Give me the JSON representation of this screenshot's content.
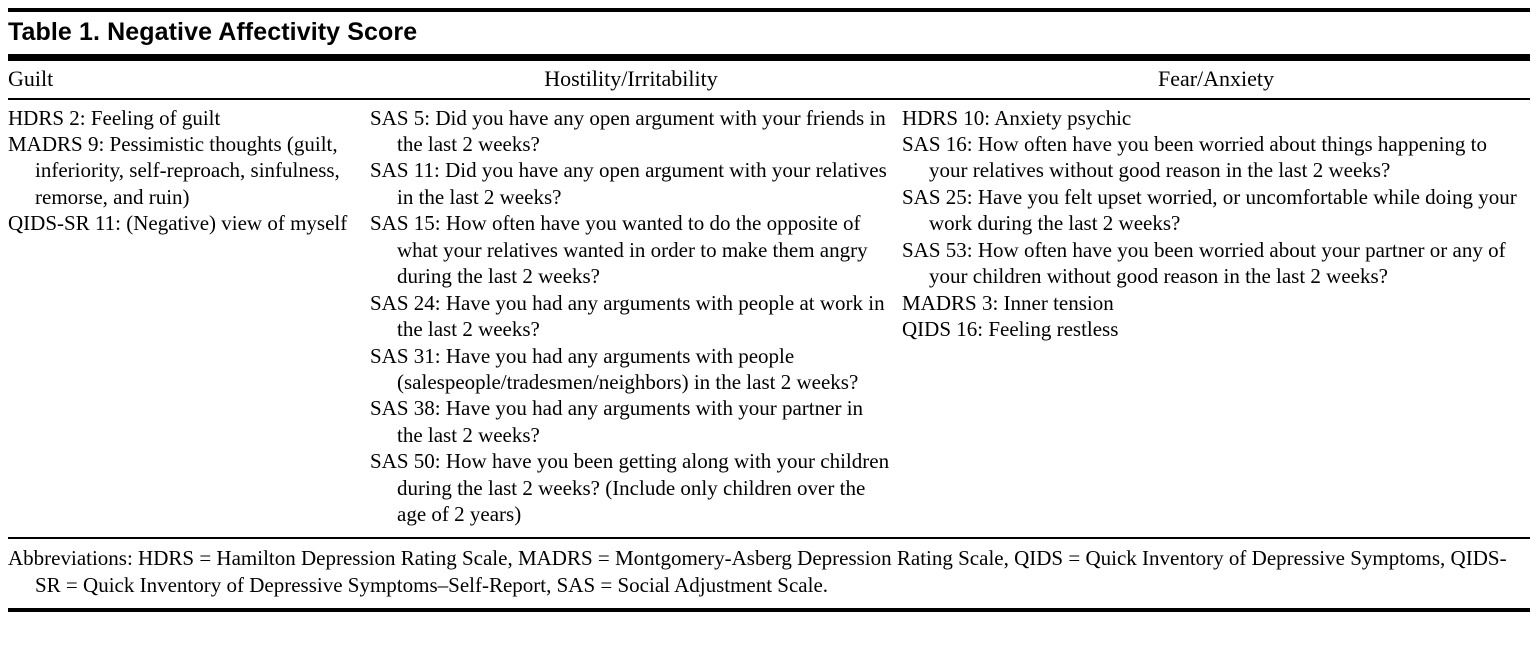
{
  "colors": {
    "text": "#000000",
    "background": "#ffffff",
    "rule": "#000000"
  },
  "table": {
    "title": "Table 1. Negative Affectivity Score",
    "columns": [
      {
        "header": "Guilt",
        "items": [
          "HDRS 2: Feeling of guilt",
          "MADRS 9: Pessimistic thoughts (guilt, inferiority, self-reproach, sinfulness, remorse, and ruin)",
          "QIDS-SR 11: (Negative) view of myself"
        ]
      },
      {
        "header": "Hostility/Irritability",
        "items": [
          "SAS 5: Did you have any open argument with your friends in the last 2 weeks?",
          "SAS 11: Did you have any open argument with your relatives in the last 2 weeks?",
          "SAS 15: How often have you wanted to do the opposite of what your relatives wanted in order to make them angry during the last 2 weeks?",
          "SAS 24: Have you had any arguments with people at work in the last 2 weeks?",
          "SAS 31: Have you had any arguments with people (salespeople/tradesmen/neighbors) in the last 2 weeks?",
          "SAS 38: Have you had any arguments with your partner in the last 2 weeks?",
          "SAS 50: How have you been getting along with your children during the last 2 weeks? (Include only children over the age of 2 years)"
        ]
      },
      {
        "header": "Fear/Anxiety",
        "items": [
          "HDRS 10: Anxiety psychic",
          "SAS 16: How often have you been worried about things happening to your relatives without good reason in the last 2 weeks?",
          "SAS 25: Have you felt upset worried, or uncomfortable while doing your work during the last 2 weeks?",
          "SAS 53: How often have you been worried about your partner or any of your children without good reason in the last 2 weeks?",
          "MADRS 3: Inner tension",
          "QIDS 16: Feeling restless"
        ]
      }
    ],
    "footnote": "Abbreviations: HDRS = Hamilton Depression Rating Scale, MADRS = Montgomery-Asberg Depression Rating Scale, QIDS = Quick Inventory of Depressive Symptoms, QIDS-SR = Quick Inventory of Depressive Symptoms–Self-Report, SAS = Social Adjustment Scale."
  }
}
